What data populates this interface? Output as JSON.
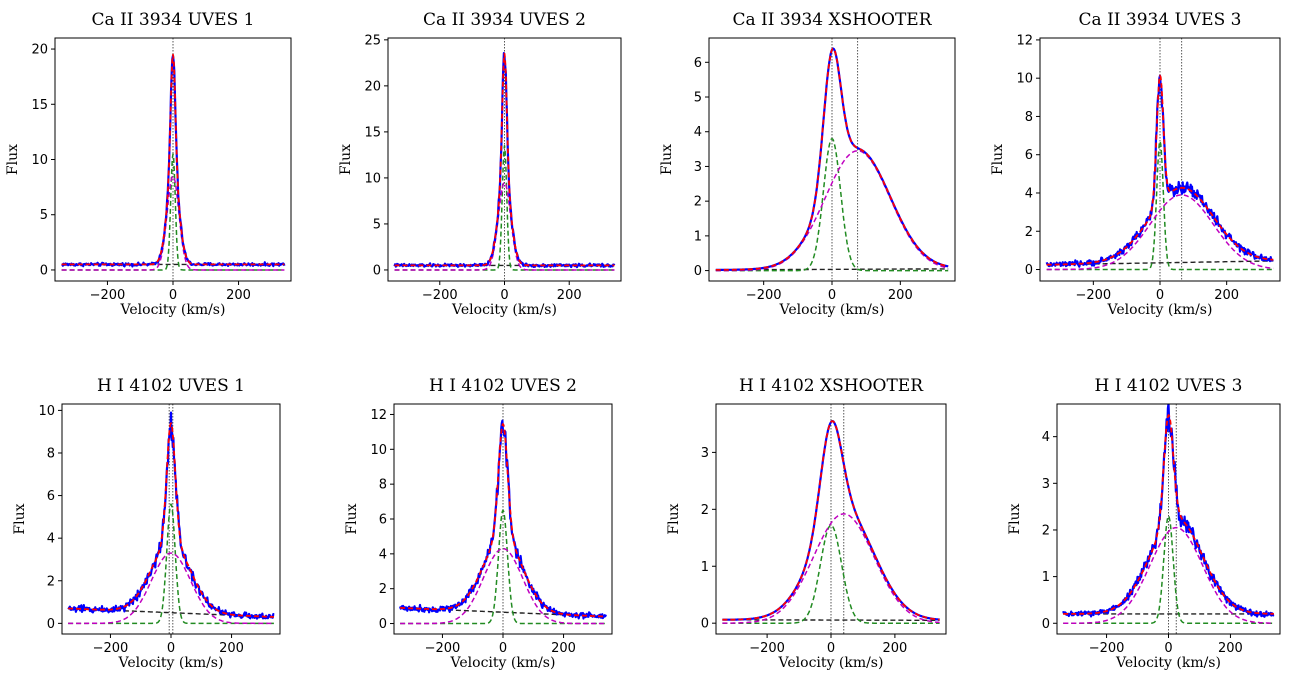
{
  "chart_data": [
    {
      "type": "line",
      "title": "Ca II 3934 UVES 1",
      "xlabel": "Velocity (km/s)",
      "ylabel": "Flux",
      "xlim": [
        -360,
        360
      ],
      "ylim": [
        -1,
        21
      ],
      "xticks": [
        -200,
        0,
        200
      ],
      "yticks": [
        0,
        5,
        10,
        15,
        20
      ],
      "vlines": [
        0
      ],
      "noise": 0.12,
      "components": {
        "narrow": {
          "amp": 10.5,
          "center": 0,
          "sigma": 7
        },
        "broad": {
          "amp": 8.5,
          "center": 0,
          "sigma": 18
        },
        "baseline": {
          "start": 0.5,
          "end": 0.5
        }
      },
      "series": []
    },
    {
      "type": "line",
      "title": "Ca II 3934 UVES 2",
      "xlabel": "Velocity (km/s)",
      "ylabel": "Flux",
      "xlim": [
        -360,
        360
      ],
      "ylim": [
        -1.2,
        25.2
      ],
      "xticks": [
        -200,
        0,
        200
      ],
      "yticks": [
        0,
        5,
        10,
        15,
        20,
        25
      ],
      "vlines": [
        0
      ],
      "noise": 0.15,
      "components": {
        "narrow": {
          "amp": 13.5,
          "center": 0,
          "sigma": 7
        },
        "broad": {
          "amp": 9.5,
          "center": 0,
          "sigma": 19
        },
        "baseline": {
          "start": 0.5,
          "end": 0.5
        }
      },
      "series": []
    },
    {
      "type": "line",
      "title": "Ca II 3934 XSHOOTER",
      "xlabel": "Velocity (km/s)",
      "ylabel": "Flux",
      "xlim": [
        -360,
        360
      ],
      "ylim": [
        -0.3,
        6.7
      ],
      "xticks": [
        -200,
        0,
        200
      ],
      "yticks": [
        0,
        1,
        2,
        3,
        4,
        5,
        6
      ],
      "vlines": [
        0,
        75
      ],
      "noise": 0.0,
      "components": {
        "narrow": {
          "amp": 3.8,
          "center": 0,
          "sigma": 25
        },
        "broad": {
          "amp": 3.45,
          "center": 75,
          "sigma": 95
        },
        "baseline": {
          "start": 0.02,
          "end": 0.05
        }
      },
      "series": []
    },
    {
      "type": "line",
      "title": "Ca II 3934 UVES 3",
      "xlabel": "Velocity (km/s)",
      "ylabel": "Flux",
      "xlim": [
        -360,
        360
      ],
      "ylim": [
        -0.6,
        12.1
      ],
      "xticks": [
        -200,
        0,
        200
      ],
      "yticks": [
        0,
        2,
        4,
        6,
        8,
        10,
        12
      ],
      "vlines": [
        0,
        65
      ],
      "noise": 0.12,
      "components": {
        "narrow": {
          "amp": 6.7,
          "center": 0,
          "sigma": 10
        },
        "broad": {
          "amp": 3.9,
          "center": 65,
          "sigma": 95
        },
        "baseline": {
          "start": 0.25,
          "end": 0.45
        }
      },
      "series": []
    },
    {
      "type": "line",
      "title": "H I 4102 UVES 1",
      "xlabel": "Velocity (km/s)",
      "ylabel": "Flux",
      "xlim": [
        -360,
        360
      ],
      "ylim": [
        -0.5,
        10.3
      ],
      "xticks": [
        -200,
        0,
        200
      ],
      "yticks": [
        0,
        2,
        4,
        6,
        8,
        10
      ],
      "vlines": [
        -6,
        6
      ],
      "noise": 0.12,
      "components": {
        "narrow": {
          "amp": 5.6,
          "center": 0,
          "sigma": 14
        },
        "broad": {
          "amp": 3.3,
          "center": 0,
          "sigma": 65
        },
        "baseline": {
          "start": 0.7,
          "end": 0.3
        }
      },
      "series": []
    },
    {
      "type": "line",
      "title": "H I 4102 UVES 2",
      "xlabel": "Velocity (km/s)",
      "ylabel": "Flux",
      "xlim": [
        -360,
        360
      ],
      "ylim": [
        -0.6,
        12.6
      ],
      "xticks": [
        -200,
        0,
        200
      ],
      "yticks": [
        0,
        2,
        4,
        6,
        8,
        10,
        12
      ],
      "vlines": [
        0
      ],
      "noise": 0.13,
      "components": {
        "narrow": {
          "amp": 6.5,
          "center": 0,
          "sigma": 15
        },
        "broad": {
          "amp": 4.3,
          "center": 0,
          "sigma": 65
        },
        "baseline": {
          "start": 0.9,
          "end": 0.4
        }
      },
      "series": []
    },
    {
      "type": "line",
      "title": "H I 4102 XSHOOTER",
      "xlabel": "Velocity (km/s)",
      "ylabel": "Flux",
      "xlim": [
        -360,
        360
      ],
      "ylim": [
        -0.19,
        3.85
      ],
      "xticks": [
        -200,
        0,
        200
      ],
      "yticks": [
        0,
        1,
        2,
        3
      ],
      "vlines": [
        0,
        40
      ],
      "noise": 0.0,
      "components": {
        "narrow": {
          "amp": 1.72,
          "center": 0,
          "sigma": 33
        },
        "broad": {
          "amp": 1.92,
          "center": 40,
          "sigma": 95
        },
        "baseline": {
          "start": 0.06,
          "end": 0.05
        }
      },
      "series": []
    },
    {
      "type": "line",
      "title": "H I 4102 UVES 3",
      "xlabel": "Velocity (km/s)",
      "ylabel": "Flux",
      "xlim": [
        -360,
        360
      ],
      "ylim": [
        -0.23,
        4.7
      ],
      "xticks": [
        -200,
        0,
        200
      ],
      "yticks": [
        0,
        1,
        2,
        3,
        4
      ],
      "vlines": [
        0,
        25
      ],
      "noise": 0.05,
      "components": {
        "narrow": {
          "amp": 2.3,
          "center": 0,
          "sigma": 15
        },
        "broad": {
          "amp": 2.05,
          "center": 25,
          "sigma": 85
        },
        "baseline": {
          "start": 0.2,
          "end": 0.2
        }
      },
      "series": []
    }
  ],
  "colors": {
    "data": "#0000ff",
    "fit": "#ff0000",
    "narrow": "#228b22",
    "broad": "#c000c0",
    "baseline": "#222222",
    "guide": "#444444"
  }
}
